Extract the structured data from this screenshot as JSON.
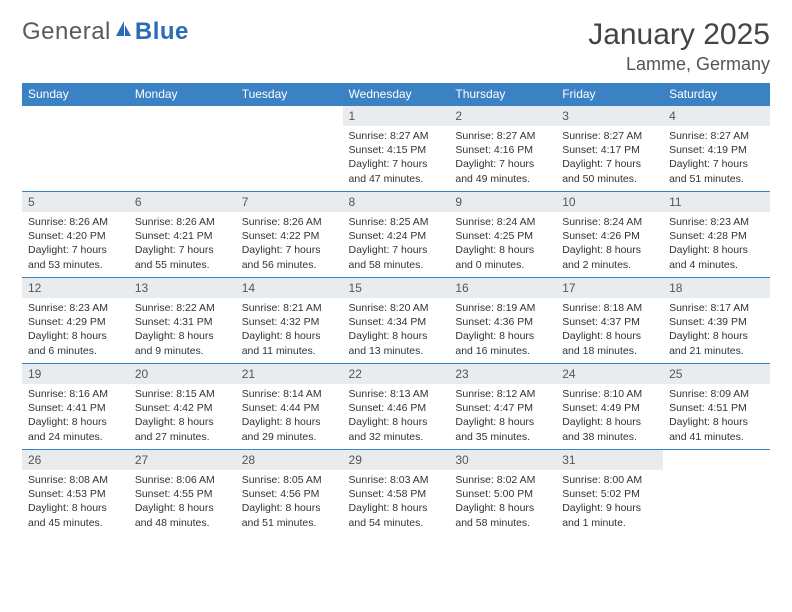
{
  "brand": {
    "part1": "General",
    "part2": "Blue"
  },
  "title": "January 2025",
  "location": "Lamme, Germany",
  "colors": {
    "header_bg": "#3b82c4",
    "daynum_bg": "#e9ecef",
    "rule": "#3b82c4",
    "text": "#333333",
    "brand_gray": "#5a5a5a",
    "brand_blue": "#2a6db5"
  },
  "weekdays": [
    "Sunday",
    "Monday",
    "Tuesday",
    "Wednesday",
    "Thursday",
    "Friday",
    "Saturday"
  ],
  "weeks": [
    [
      null,
      null,
      null,
      {
        "n": "1",
        "sr": "Sunrise: 8:27 AM",
        "ss": "Sunset: 4:15 PM",
        "dl": "Daylight: 7 hours and 47 minutes."
      },
      {
        "n": "2",
        "sr": "Sunrise: 8:27 AM",
        "ss": "Sunset: 4:16 PM",
        "dl": "Daylight: 7 hours and 49 minutes."
      },
      {
        "n": "3",
        "sr": "Sunrise: 8:27 AM",
        "ss": "Sunset: 4:17 PM",
        "dl": "Daylight: 7 hours and 50 minutes."
      },
      {
        "n": "4",
        "sr": "Sunrise: 8:27 AM",
        "ss": "Sunset: 4:19 PM",
        "dl": "Daylight: 7 hours and 51 minutes."
      }
    ],
    [
      {
        "n": "5",
        "sr": "Sunrise: 8:26 AM",
        "ss": "Sunset: 4:20 PM",
        "dl": "Daylight: 7 hours and 53 minutes."
      },
      {
        "n": "6",
        "sr": "Sunrise: 8:26 AM",
        "ss": "Sunset: 4:21 PM",
        "dl": "Daylight: 7 hours and 55 minutes."
      },
      {
        "n": "7",
        "sr": "Sunrise: 8:26 AM",
        "ss": "Sunset: 4:22 PM",
        "dl": "Daylight: 7 hours and 56 minutes."
      },
      {
        "n": "8",
        "sr": "Sunrise: 8:25 AM",
        "ss": "Sunset: 4:24 PM",
        "dl": "Daylight: 7 hours and 58 minutes."
      },
      {
        "n": "9",
        "sr": "Sunrise: 8:24 AM",
        "ss": "Sunset: 4:25 PM",
        "dl": "Daylight: 8 hours and 0 minutes."
      },
      {
        "n": "10",
        "sr": "Sunrise: 8:24 AM",
        "ss": "Sunset: 4:26 PM",
        "dl": "Daylight: 8 hours and 2 minutes."
      },
      {
        "n": "11",
        "sr": "Sunrise: 8:23 AM",
        "ss": "Sunset: 4:28 PM",
        "dl": "Daylight: 8 hours and 4 minutes."
      }
    ],
    [
      {
        "n": "12",
        "sr": "Sunrise: 8:23 AM",
        "ss": "Sunset: 4:29 PM",
        "dl": "Daylight: 8 hours and 6 minutes."
      },
      {
        "n": "13",
        "sr": "Sunrise: 8:22 AM",
        "ss": "Sunset: 4:31 PM",
        "dl": "Daylight: 8 hours and 9 minutes."
      },
      {
        "n": "14",
        "sr": "Sunrise: 8:21 AM",
        "ss": "Sunset: 4:32 PM",
        "dl": "Daylight: 8 hours and 11 minutes."
      },
      {
        "n": "15",
        "sr": "Sunrise: 8:20 AM",
        "ss": "Sunset: 4:34 PM",
        "dl": "Daylight: 8 hours and 13 minutes."
      },
      {
        "n": "16",
        "sr": "Sunrise: 8:19 AM",
        "ss": "Sunset: 4:36 PM",
        "dl": "Daylight: 8 hours and 16 minutes."
      },
      {
        "n": "17",
        "sr": "Sunrise: 8:18 AM",
        "ss": "Sunset: 4:37 PM",
        "dl": "Daylight: 8 hours and 18 minutes."
      },
      {
        "n": "18",
        "sr": "Sunrise: 8:17 AM",
        "ss": "Sunset: 4:39 PM",
        "dl": "Daylight: 8 hours and 21 minutes."
      }
    ],
    [
      {
        "n": "19",
        "sr": "Sunrise: 8:16 AM",
        "ss": "Sunset: 4:41 PM",
        "dl": "Daylight: 8 hours and 24 minutes."
      },
      {
        "n": "20",
        "sr": "Sunrise: 8:15 AM",
        "ss": "Sunset: 4:42 PM",
        "dl": "Daylight: 8 hours and 27 minutes."
      },
      {
        "n": "21",
        "sr": "Sunrise: 8:14 AM",
        "ss": "Sunset: 4:44 PM",
        "dl": "Daylight: 8 hours and 29 minutes."
      },
      {
        "n": "22",
        "sr": "Sunrise: 8:13 AM",
        "ss": "Sunset: 4:46 PM",
        "dl": "Daylight: 8 hours and 32 minutes."
      },
      {
        "n": "23",
        "sr": "Sunrise: 8:12 AM",
        "ss": "Sunset: 4:47 PM",
        "dl": "Daylight: 8 hours and 35 minutes."
      },
      {
        "n": "24",
        "sr": "Sunrise: 8:10 AM",
        "ss": "Sunset: 4:49 PM",
        "dl": "Daylight: 8 hours and 38 minutes."
      },
      {
        "n": "25",
        "sr": "Sunrise: 8:09 AM",
        "ss": "Sunset: 4:51 PM",
        "dl": "Daylight: 8 hours and 41 minutes."
      }
    ],
    [
      {
        "n": "26",
        "sr": "Sunrise: 8:08 AM",
        "ss": "Sunset: 4:53 PM",
        "dl": "Daylight: 8 hours and 45 minutes."
      },
      {
        "n": "27",
        "sr": "Sunrise: 8:06 AM",
        "ss": "Sunset: 4:55 PM",
        "dl": "Daylight: 8 hours and 48 minutes."
      },
      {
        "n": "28",
        "sr": "Sunrise: 8:05 AM",
        "ss": "Sunset: 4:56 PM",
        "dl": "Daylight: 8 hours and 51 minutes."
      },
      {
        "n": "29",
        "sr": "Sunrise: 8:03 AM",
        "ss": "Sunset: 4:58 PM",
        "dl": "Daylight: 8 hours and 54 minutes."
      },
      {
        "n": "30",
        "sr": "Sunrise: 8:02 AM",
        "ss": "Sunset: 5:00 PM",
        "dl": "Daylight: 8 hours and 58 minutes."
      },
      {
        "n": "31",
        "sr": "Sunrise: 8:00 AM",
        "ss": "Sunset: 5:02 PM",
        "dl": "Daylight: 9 hours and 1 minute."
      },
      null
    ]
  ]
}
